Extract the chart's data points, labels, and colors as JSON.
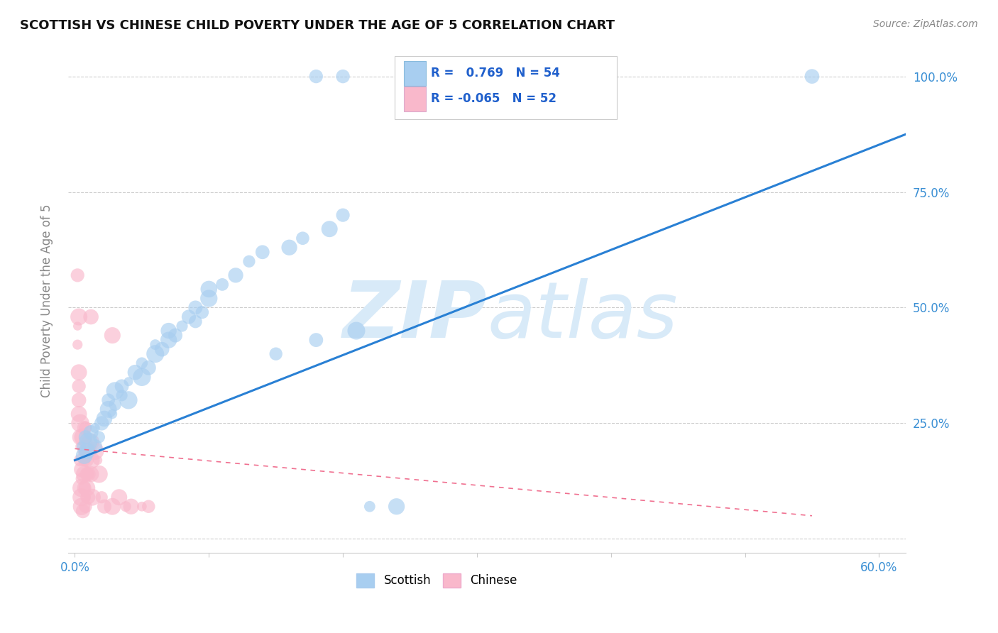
{
  "title": "SCOTTISH VS CHINESE CHILD POVERTY UNDER THE AGE OF 5 CORRELATION CHART",
  "source": "Source: ZipAtlas.com",
  "ylabel": "Child Poverty Under the Age of 5",
  "r_scottish": 0.769,
  "n_scottish": 54,
  "r_chinese": -0.065,
  "n_chinese": 52,
  "scottish_color": "#A8CEF0",
  "chinese_color": "#F9B8CB",
  "scottish_line_color": "#2980D4",
  "chinese_line_color": "#F07090",
  "watermark_color": "#D8EAF8",
  "scottish_points": [
    [
      0.005,
      0.2
    ],
    [
      0.007,
      0.18
    ],
    [
      0.008,
      0.22
    ],
    [
      0.009,
      0.19
    ],
    [
      0.01,
      0.21
    ],
    [
      0.012,
      0.23
    ],
    [
      0.015,
      0.2
    ],
    [
      0.015,
      0.24
    ],
    [
      0.018,
      0.22
    ],
    [
      0.02,
      0.25
    ],
    [
      0.022,
      0.26
    ],
    [
      0.025,
      0.28
    ],
    [
      0.025,
      0.3
    ],
    [
      0.028,
      0.27
    ],
    [
      0.03,
      0.29
    ],
    [
      0.03,
      0.32
    ],
    [
      0.035,
      0.31
    ],
    [
      0.035,
      0.33
    ],
    [
      0.04,
      0.3
    ],
    [
      0.04,
      0.34
    ],
    [
      0.045,
      0.36
    ],
    [
      0.05,
      0.35
    ],
    [
      0.05,
      0.38
    ],
    [
      0.055,
      0.37
    ],
    [
      0.06,
      0.4
    ],
    [
      0.06,
      0.42
    ],
    [
      0.065,
      0.41
    ],
    [
      0.07,
      0.43
    ],
    [
      0.07,
      0.45
    ],
    [
      0.075,
      0.44
    ],
    [
      0.08,
      0.46
    ],
    [
      0.085,
      0.48
    ],
    [
      0.09,
      0.47
    ],
    [
      0.09,
      0.5
    ],
    [
      0.095,
      0.49
    ],
    [
      0.1,
      0.52
    ],
    [
      0.1,
      0.54
    ],
    [
      0.11,
      0.55
    ],
    [
      0.12,
      0.57
    ],
    [
      0.13,
      0.6
    ],
    [
      0.14,
      0.62
    ],
    [
      0.15,
      0.4
    ],
    [
      0.16,
      0.63
    ],
    [
      0.17,
      0.65
    ],
    [
      0.18,
      0.43
    ],
    [
      0.19,
      0.67
    ],
    [
      0.2,
      0.7
    ],
    [
      0.21,
      0.45
    ],
    [
      0.22,
      0.07
    ],
    [
      0.24,
      0.07
    ],
    [
      0.18,
      1.0
    ],
    [
      0.2,
      1.0
    ],
    [
      0.38,
      1.0
    ],
    [
      0.55,
      1.0
    ]
  ],
  "chinese_points": [
    [
      0.002,
      0.57
    ],
    [
      0.002,
      0.46
    ],
    [
      0.002,
      0.42
    ],
    [
      0.003,
      0.36
    ],
    [
      0.003,
      0.3
    ],
    [
      0.003,
      0.27
    ],
    [
      0.004,
      0.25
    ],
    [
      0.004,
      0.22
    ],
    [
      0.004,
      0.2
    ],
    [
      0.004,
      0.17
    ],
    [
      0.005,
      0.15
    ],
    [
      0.005,
      0.13
    ],
    [
      0.005,
      0.11
    ],
    [
      0.005,
      0.09
    ],
    [
      0.005,
      0.07
    ],
    [
      0.006,
      0.06
    ],
    [
      0.006,
      0.22
    ],
    [
      0.006,
      0.19
    ],
    [
      0.007,
      0.17
    ],
    [
      0.007,
      0.24
    ],
    [
      0.007,
      0.14
    ],
    [
      0.007,
      0.11
    ],
    [
      0.008,
      0.09
    ],
    [
      0.008,
      0.07
    ],
    [
      0.008,
      0.24
    ],
    [
      0.008,
      0.19
    ],
    [
      0.009,
      0.21
    ],
    [
      0.009,
      0.17
    ],
    [
      0.009,
      0.14
    ],
    [
      0.009,
      0.11
    ],
    [
      0.01,
      0.19
    ],
    [
      0.01,
      0.14
    ],
    [
      0.01,
      0.09
    ],
    [
      0.012,
      0.21
    ],
    [
      0.012,
      0.17
    ],
    [
      0.012,
      0.14
    ],
    [
      0.013,
      0.09
    ],
    [
      0.015,
      0.19
    ],
    [
      0.017,
      0.17
    ],
    [
      0.018,
      0.14
    ],
    [
      0.02,
      0.09
    ],
    [
      0.022,
      0.07
    ],
    [
      0.028,
      0.07
    ],
    [
      0.033,
      0.09
    ],
    [
      0.038,
      0.07
    ],
    [
      0.042,
      0.07
    ],
    [
      0.05,
      0.07
    ],
    [
      0.055,
      0.07
    ],
    [
      0.003,
      0.48
    ],
    [
      0.003,
      0.33
    ],
    [
      0.012,
      0.48
    ],
    [
      0.028,
      0.44
    ]
  ],
  "xlim": [
    -0.005,
    0.62
  ],
  "ylim": [
    -0.03,
    1.06
  ],
  "xtick_positions": [
    0.0,
    0.1,
    0.2,
    0.3,
    0.4,
    0.5,
    0.6
  ],
  "ytick_positions": [
    0.0,
    0.25,
    0.5,
    0.75,
    1.0
  ],
  "ytick_labels": [
    "",
    "25.0%",
    "50.0%",
    "75.0%",
    "100.0%"
  ]
}
